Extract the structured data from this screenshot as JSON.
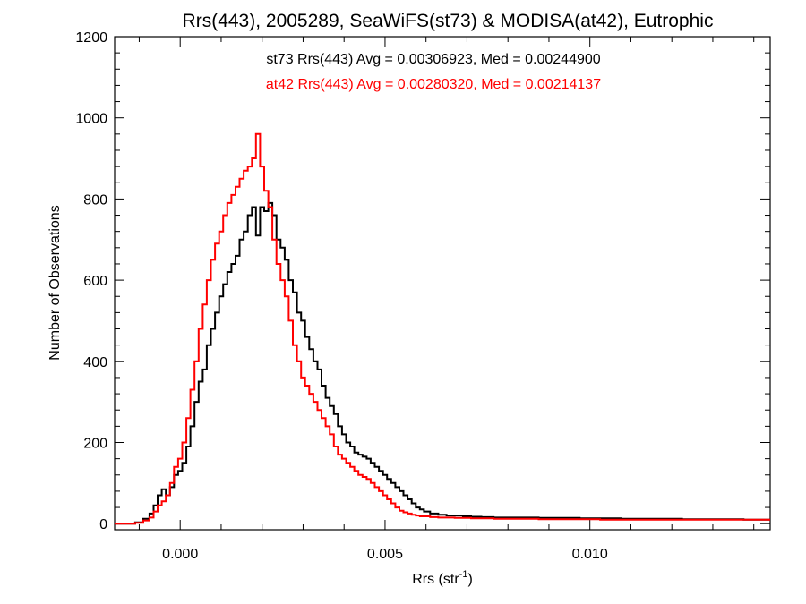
{
  "chart_data": {
    "type": "line",
    "title": "Rrs(443), 2005289, SeaWiFS(st73) & MODISA(at42), Eutrophic",
    "xlabel_main": "Rrs (str",
    "xlabel_sup": "-1",
    "xlabel_close": ")",
    "ylabel": "Number of Observations",
    "xlim": [
      -0.0016,
      0.0144
    ],
    "ylim": [
      -15,
      1200
    ],
    "x_ticks": [
      0.0,
      0.005,
      0.01
    ],
    "x_tick_labels": [
      "0.000",
      "0.005",
      "0.010"
    ],
    "y_ticks": [
      0,
      200,
      400,
      600,
      800,
      1000,
      1200
    ],
    "y_tick_labels": [
      "0",
      "200",
      "400",
      "600",
      "800",
      "1000",
      "1200"
    ],
    "grid": false,
    "legend_placement": "top-center",
    "series": [
      {
        "name": "st73 Rrs(443) Avg = 0.00306923, Med = 0.00244900",
        "color": "#000000",
        "x": [
          -0.0016,
          -0.0012,
          -0.001,
          -0.0008,
          -0.0007,
          -0.0006,
          -0.0005,
          -0.0004,
          -0.0003,
          -0.0002,
          -0.0001,
          0.0,
          0.0001,
          0.0002,
          0.0003,
          0.0004,
          0.0005,
          0.0006,
          0.0007,
          0.0008,
          0.0009,
          0.001,
          0.0011,
          0.0012,
          0.0013,
          0.0014,
          0.0015,
          0.0016,
          0.0017,
          0.0018,
          0.0019,
          0.002,
          0.0021,
          0.0022,
          0.0023,
          0.0024,
          0.0025,
          0.0026,
          0.0027,
          0.0028,
          0.0029,
          0.003,
          0.0031,
          0.0032,
          0.0033,
          0.0034,
          0.0035,
          0.0036,
          0.0037,
          0.0038,
          0.0039,
          0.004,
          0.0041,
          0.0042,
          0.0043,
          0.0044,
          0.0045,
          0.0046,
          0.0047,
          0.0048,
          0.0049,
          0.005,
          0.0051,
          0.0052,
          0.0053,
          0.0054,
          0.0055,
          0.0056,
          0.0057,
          0.0058,
          0.0059,
          0.006,
          0.0062,
          0.0064,
          0.0066,
          0.0068,
          0.007,
          0.0072,
          0.0075,
          0.0078,
          0.008,
          0.0085,
          0.009,
          0.0095,
          0.01,
          0.0105,
          0.011,
          0.0115,
          0.012,
          0.0125,
          0.013,
          0.0135,
          0.014,
          0.0144
        ],
        "y": [
          0,
          0,
          3,
          12,
          25,
          45,
          70,
          85,
          70,
          90,
          120,
          130,
          150,
          190,
          240,
          300,
          350,
          380,
          440,
          480,
          520,
          560,
          590,
          620,
          640,
          660,
          700,
          720,
          760,
          780,
          710,
          780,
          770,
          790,
          760,
          700,
          680,
          650,
          600,
          570,
          520,
          500,
          460,
          430,
          400,
          380,
          340,
          310,
          290,
          270,
          240,
          220,
          200,
          190,
          175,
          170,
          165,
          160,
          150,
          140,
          130,
          120,
          110,
          100,
          90,
          80,
          70,
          60,
          50,
          40,
          35,
          30,
          25,
          22,
          20,
          20,
          18,
          17,
          16,
          15,
          15,
          15,
          14,
          14,
          13,
          13,
          12,
          12,
          12,
          11,
          11,
          11,
          10,
          10
        ]
      },
      {
        "name": "at42 Rrs(443) Avg = 0.00280320, Med = 0.00214137",
        "color": "#ff0000",
        "x": [
          -0.0016,
          -0.0012,
          -0.001,
          -0.0008,
          -0.0007,
          -0.0006,
          -0.0005,
          -0.0004,
          -0.0003,
          -0.0002,
          -0.0001,
          0.0,
          0.0001,
          0.0002,
          0.0003,
          0.0004,
          0.0005,
          0.0006,
          0.0007,
          0.0008,
          0.0009,
          0.001,
          0.0011,
          0.0012,
          0.0013,
          0.0014,
          0.0015,
          0.0016,
          0.0017,
          0.0018,
          0.0019,
          0.002,
          0.0021,
          0.0022,
          0.0023,
          0.0024,
          0.0025,
          0.0026,
          0.0027,
          0.0028,
          0.0029,
          0.003,
          0.0031,
          0.0032,
          0.0033,
          0.0034,
          0.0035,
          0.0036,
          0.0037,
          0.0038,
          0.0039,
          0.004,
          0.0041,
          0.0042,
          0.0043,
          0.0044,
          0.0045,
          0.0046,
          0.0047,
          0.0048,
          0.0049,
          0.005,
          0.0051,
          0.0052,
          0.0053,
          0.0054,
          0.0055,
          0.0056,
          0.0057,
          0.0058,
          0.0059,
          0.006,
          0.0062,
          0.0064,
          0.0066,
          0.0068,
          0.007,
          0.0072,
          0.0075,
          0.0078,
          0.008,
          0.0085,
          0.009,
          0.0095,
          0.01,
          0.0105,
          0.011,
          0.0115,
          0.012,
          0.0125,
          0.013,
          0.0135,
          0.014,
          0.0144
        ],
        "y": [
          0,
          0,
          2,
          8,
          15,
          30,
          45,
          55,
          70,
          100,
          140,
          160,
          200,
          260,
          330,
          400,
          480,
          540,
          600,
          650,
          690,
          720,
          760,
          790,
          810,
          830,
          850,
          870,
          880,
          900,
          960,
          880,
          820,
          780,
          700,
          640,
          600,
          560,
          500,
          440,
          400,
          360,
          340,
          320,
          300,
          280,
          260,
          240,
          220,
          190,
          170,
          160,
          150,
          140,
          130,
          120,
          115,
          110,
          100,
          90,
          80,
          70,
          60,
          50,
          40,
          32,
          28,
          25,
          22,
          20,
          18,
          18,
          16,
          15,
          15,
          14,
          14,
          13,
          13,
          12,
          12,
          12,
          11,
          11,
          11,
          10,
          10,
          10,
          10,
          10,
          10,
          10,
          10,
          10
        ]
      }
    ]
  }
}
